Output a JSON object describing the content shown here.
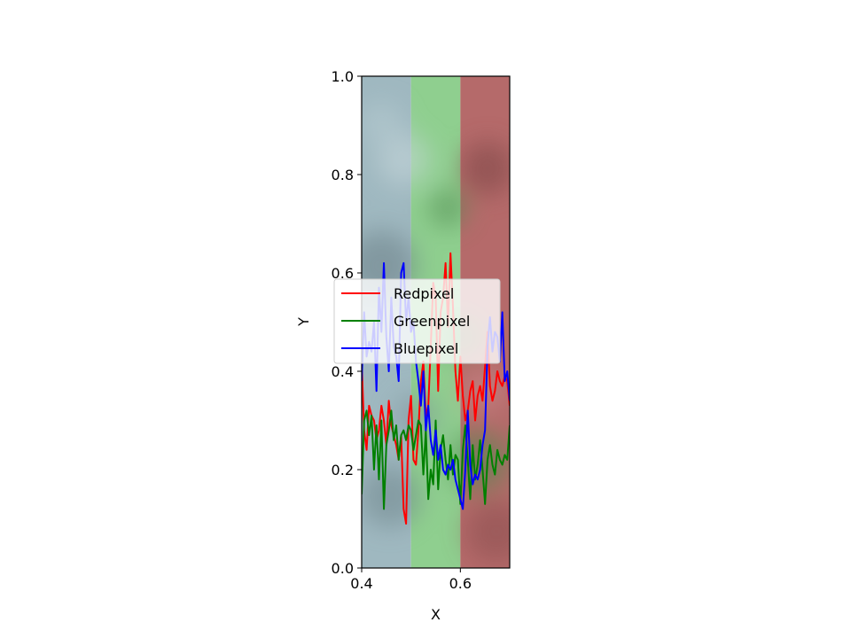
{
  "chart_data": {
    "type": "line",
    "title": "",
    "xlabel": "X",
    "ylabel": "Y",
    "xlim": [
      0.4,
      0.7
    ],
    "ylim": [
      0.0,
      1.0
    ],
    "xticks": [
      "0.4",
      "0.6"
    ],
    "xtick_values": [
      0.4,
      0.6
    ],
    "yticks": [
      "0.0",
      "0.2",
      "0.4",
      "0.6",
      "0.8",
      "1.0"
    ],
    "ytick_values": [
      0.0,
      0.2,
      0.4,
      0.6,
      0.8,
      1.0
    ],
    "grid": false,
    "legend_position": "center-left",
    "background_bands": [
      {
        "x_range": [
          0.4,
          0.5
        ],
        "color": "#9fb8c0",
        "label": "blue-gray image strip"
      },
      {
        "x_range": [
          0.5,
          0.6
        ],
        "color": "#8fcf8f",
        "label": "green image strip"
      },
      {
        "x_range": [
          0.6,
          0.7
        ],
        "color": "#b56a6a",
        "label": "red image strip"
      }
    ],
    "series": [
      {
        "name": "Redpixel",
        "color": "#ff0000",
        "x": [
          0.4,
          0.405,
          0.41,
          0.415,
          0.42,
          0.425,
          0.43,
          0.435,
          0.44,
          0.445,
          0.45,
          0.455,
          0.46,
          0.465,
          0.47,
          0.475,
          0.48,
          0.485,
          0.49,
          0.495,
          0.5,
          0.505,
          0.51,
          0.515,
          0.52,
          0.525,
          0.53,
          0.535,
          0.54,
          0.545,
          0.55,
          0.555,
          0.56,
          0.565,
          0.57,
          0.575,
          0.58,
          0.585,
          0.59,
          0.595,
          0.6,
          0.605,
          0.61,
          0.615,
          0.62,
          0.625,
          0.63,
          0.635,
          0.64,
          0.645,
          0.65,
          0.655,
          0.66,
          0.665,
          0.67,
          0.675,
          0.68,
          0.685,
          0.69,
          0.695,
          0.7
        ],
        "y": [
          0.42,
          0.28,
          0.24,
          0.33,
          0.31,
          0.3,
          0.26,
          0.28,
          0.33,
          0.3,
          0.25,
          0.34,
          0.29,
          0.27,
          0.25,
          0.22,
          0.27,
          0.12,
          0.09,
          0.3,
          0.35,
          0.22,
          0.21,
          0.28,
          0.38,
          0.42,
          0.31,
          0.33,
          0.45,
          0.58,
          0.55,
          0.36,
          0.52,
          0.55,
          0.62,
          0.49,
          0.64,
          0.53,
          0.4,
          0.34,
          0.43,
          0.35,
          0.3,
          0.32,
          0.36,
          0.38,
          0.3,
          0.35,
          0.37,
          0.34,
          0.41,
          0.48,
          0.37,
          0.34,
          0.36,
          0.4,
          0.38,
          0.37,
          0.39,
          0.38,
          0.33
        ]
      },
      {
        "name": "Greenpixel",
        "color": "#008000",
        "x": [
          0.4,
          0.405,
          0.41,
          0.415,
          0.42,
          0.425,
          0.43,
          0.435,
          0.44,
          0.445,
          0.45,
          0.455,
          0.46,
          0.465,
          0.47,
          0.475,
          0.48,
          0.485,
          0.49,
          0.495,
          0.5,
          0.505,
          0.51,
          0.515,
          0.52,
          0.525,
          0.53,
          0.535,
          0.54,
          0.545,
          0.55,
          0.555,
          0.56,
          0.565,
          0.57,
          0.575,
          0.58,
          0.585,
          0.59,
          0.595,
          0.6,
          0.605,
          0.61,
          0.615,
          0.62,
          0.625,
          0.63,
          0.635,
          0.64,
          0.645,
          0.65,
          0.655,
          0.66,
          0.665,
          0.67,
          0.675,
          0.68,
          0.685,
          0.69,
          0.695,
          0.7
        ],
        "y": [
          0.15,
          0.3,
          0.32,
          0.27,
          0.31,
          0.2,
          0.29,
          0.18,
          0.3,
          0.12,
          0.25,
          0.28,
          0.32,
          0.26,
          0.29,
          0.22,
          0.27,
          0.28,
          0.26,
          0.29,
          0.28,
          0.24,
          0.27,
          0.3,
          0.29,
          0.19,
          0.28,
          0.14,
          0.2,
          0.17,
          0.3,
          0.16,
          0.24,
          0.27,
          0.22,
          0.18,
          0.25,
          0.19,
          0.23,
          0.22,
          0.13,
          0.24,
          0.29,
          0.22,
          0.14,
          0.25,
          0.18,
          0.21,
          0.26,
          0.2,
          0.13,
          0.22,
          0.25,
          0.21,
          0.19,
          0.24,
          0.22,
          0.21,
          0.23,
          0.22,
          0.29
        ]
      },
      {
        "name": "Bluepixel",
        "color": "#0000ff",
        "x": [
          0.4,
          0.405,
          0.41,
          0.415,
          0.42,
          0.425,
          0.43,
          0.435,
          0.44,
          0.445,
          0.45,
          0.455,
          0.46,
          0.465,
          0.47,
          0.475,
          0.48,
          0.485,
          0.49,
          0.495,
          0.5,
          0.505,
          0.51,
          0.515,
          0.52,
          0.525,
          0.53,
          0.535,
          0.54,
          0.545,
          0.55,
          0.555,
          0.56,
          0.565,
          0.57,
          0.575,
          0.58,
          0.585,
          0.59,
          0.595,
          0.6,
          0.605,
          0.61,
          0.615,
          0.62,
          0.625,
          0.63,
          0.635,
          0.64,
          0.645,
          0.65,
          0.655,
          0.66,
          0.665,
          0.67,
          0.675,
          0.68,
          0.685,
          0.69,
          0.695,
          0.7
        ],
        "y": [
          0.38,
          0.52,
          0.43,
          0.46,
          0.44,
          0.5,
          0.36,
          0.57,
          0.48,
          0.62,
          0.47,
          0.4,
          0.55,
          0.45,
          0.43,
          0.38,
          0.6,
          0.62,
          0.5,
          0.55,
          0.48,
          0.5,
          0.42,
          0.38,
          0.33,
          0.4,
          0.28,
          0.33,
          0.26,
          0.23,
          0.28,
          0.22,
          0.25,
          0.2,
          0.19,
          0.21,
          0.2,
          0.22,
          0.18,
          0.16,
          0.14,
          0.12,
          0.2,
          0.32,
          0.21,
          0.17,
          0.19,
          0.18,
          0.2,
          0.25,
          0.28,
          0.45,
          0.51,
          0.44,
          0.48,
          0.47,
          0.42,
          0.52,
          0.38,
          0.4,
          0.34
        ]
      }
    ]
  }
}
